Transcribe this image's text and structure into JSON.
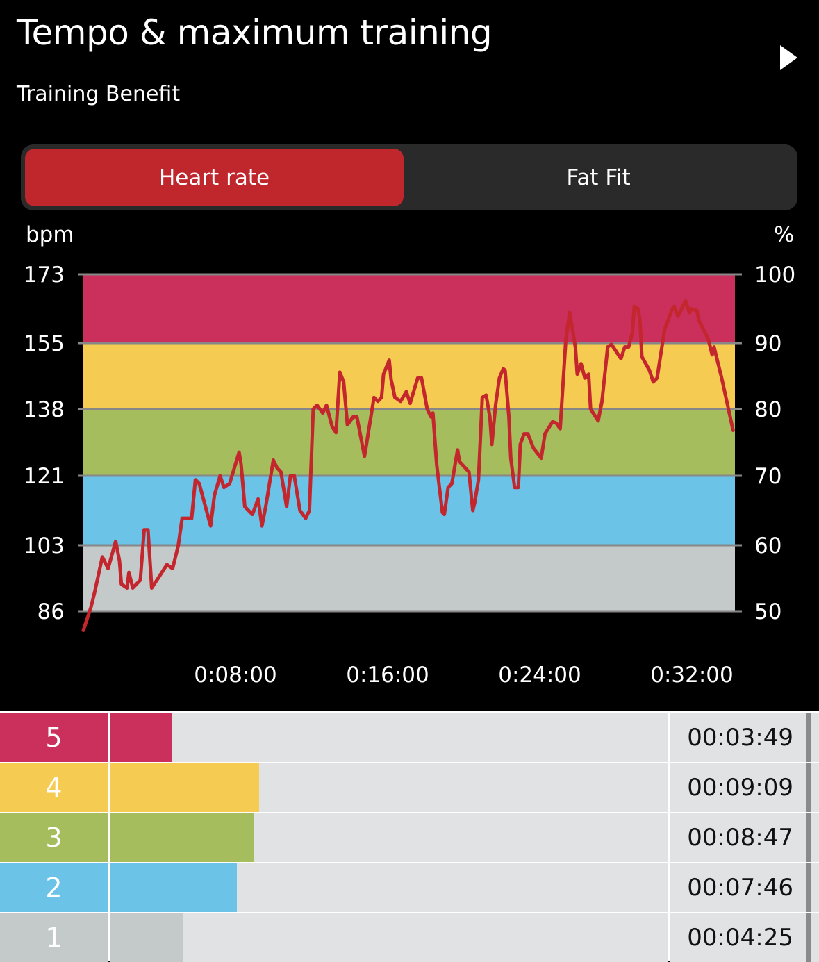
{
  "header": {
    "title": "Tempo & maximum training",
    "subtitle": "Training Benefit",
    "next_icon": "play-triangle-icon"
  },
  "tabs": [
    {
      "label": "Heart rate",
      "active": true
    },
    {
      "label": "Fat Fit",
      "active": false
    }
  ],
  "colors": {
    "zone5": "#cb2f5b",
    "zone4": "#f6cb52",
    "zone3": "#a5bd5c",
    "zone2": "#6bc3e8",
    "zone1": "#c4c9c9",
    "line": "#c4262e",
    "active_tab": "#c0272d"
  },
  "chart_data": {
    "type": "line",
    "ylabel": "bpm",
    "y2label": "%",
    "yticks": [
      "173",
      "155",
      "138",
      "121",
      "103",
      "86"
    ],
    "yticks_values": [
      173,
      155,
      138,
      121,
      103,
      86
    ],
    "y2ticks": [
      "100",
      "90",
      "80",
      "70",
      "60",
      "50"
    ],
    "xticks": [
      "0:08:00",
      "0:16:00",
      "0:24:00",
      "0:32:00"
    ],
    "xticks_minutes": [
      8,
      16,
      24,
      32
    ],
    "xlim_minutes": [
      0,
      34.3
    ],
    "ylim": [
      86,
      173
    ],
    "zones": [
      {
        "zone": 5,
        "from": 155,
        "to": 173
      },
      {
        "zone": 4,
        "from": 138,
        "to": 155
      },
      {
        "zone": 3,
        "from": 121,
        "to": 138
      },
      {
        "zone": 2,
        "from": 103,
        "to": 121
      },
      {
        "zone": 1,
        "from": 86,
        "to": 103
      }
    ],
    "series": [
      {
        "name": "Heart rate",
        "x_minutes": [
          0.0,
          0.4,
          0.6,
          1.0,
          1.3,
          1.7,
          1.9,
          2.0,
          2.3,
          2.4,
          2.6,
          3.0,
          3.2,
          3.4,
          3.6,
          4.0,
          4.4,
          4.7,
          5.0,
          5.2,
          5.7,
          5.9,
          6.1,
          6.7,
          6.9,
          7.2,
          7.4,
          7.7,
          8.2,
          8.3,
          8.5,
          8.9,
          9.2,
          9.4,
          9.6,
          10.0,
          10.2,
          10.4,
          10.7,
          10.9,
          11.1,
          11.4,
          11.7,
          11.9,
          12.1,
          12.3,
          12.6,
          12.8,
          13.1,
          13.3,
          13.5,
          13.7,
          13.9,
          14.2,
          14.4,
          14.8,
          14.9,
          15.3,
          15.5,
          15.7,
          15.8,
          16.1,
          16.2,
          16.4,
          16.7,
          17.0,
          17.2,
          17.6,
          17.8,
          18.1,
          18.3,
          18.4,
          18.6,
          18.9,
          19.0,
          19.2,
          19.4,
          19.7,
          19.8,
          20.3,
          20.5,
          20.6,
          20.8,
          21.0,
          21.2,
          21.4,
          21.5,
          21.7,
          21.9,
          22.1,
          22.2,
          22.4,
          22.5,
          22.7,
          22.9,
          23.0,
          23.2,
          23.4,
          23.7,
          24.1,
          24.3,
          24.7,
          24.9,
          25.1,
          25.4,
          25.6,
          25.9,
          26.0,
          26.2,
          26.4,
          26.6,
          26.7,
          27.1,
          27.3,
          27.6,
          27.8,
          28.3,
          28.5,
          28.7,
          28.9,
          29.0,
          29.2,
          29.3,
          29.4,
          29.8,
          30.0,
          30.2,
          30.6,
          31.0,
          31.1,
          31.3,
          31.7,
          31.9,
          32.0,
          32.3,
          32.4,
          32.9,
          33.1,
          33.2,
          33.6,
          33.8,
          34.2
        ],
        "bpm": [
          81,
          87,
          91,
          100,
          97,
          104,
          99,
          93,
          92,
          96,
          92,
          94,
          107,
          107,
          92,
          95,
          98,
          97,
          103,
          110,
          110,
          120,
          119,
          108,
          116,
          121,
          118,
          119,
          127,
          124,
          113,
          111,
          115,
          108,
          113,
          125,
          123,
          122,
          113,
          121,
          121,
          112,
          110,
          112,
          138,
          139,
          137,
          139,
          133.5,
          132,
          147.5,
          145,
          134,
          136,
          136,
          126,
          129,
          141,
          140,
          141,
          147,
          150.6,
          145.6,
          141,
          140,
          142.5,
          139.5,
          146,
          146,
          138,
          136,
          137,
          123.7,
          111.5,
          111,
          118,
          119,
          127.6,
          124.6,
          122,
          112,
          114,
          120,
          141,
          141.6,
          136,
          129,
          139,
          146,
          148.4,
          148,
          136,
          125.5,
          118,
          118,
          129,
          131.7,
          131.7,
          128,
          125.5,
          131.7,
          134.8,
          134.4,
          133,
          156,
          163,
          154,
          147,
          149.7,
          146,
          147,
          138,
          135,
          140,
          154,
          154.7,
          151,
          154,
          154,
          157.7,
          164.6,
          164,
          161,
          151.5,
          148,
          145,
          146,
          158.6,
          164,
          164.6,
          162,
          166,
          163,
          164,
          163.5,
          161,
          156,
          152,
          154,
          146,
          141.6,
          132.6
        ]
      }
    ]
  },
  "zone_table": [
    {
      "zone": "5",
      "time": "00:03:49",
      "fill_fraction": 0.112,
      "color": "#cb2f5b"
    },
    {
      "zone": "4",
      "time": "00:09:09",
      "fill_fraction": 0.267,
      "color": "#f6cb52"
    },
    {
      "zone": "3",
      "time": "00:08:47",
      "fill_fraction": 0.257,
      "color": "#a5bd5c"
    },
    {
      "zone": "2",
      "time": "00:07:46",
      "fill_fraction": 0.228,
      "color": "#6bc3e8"
    },
    {
      "zone": "1",
      "time": "00:04:25",
      "fill_fraction": 0.131,
      "color": "#c4c9c9"
    }
  ]
}
